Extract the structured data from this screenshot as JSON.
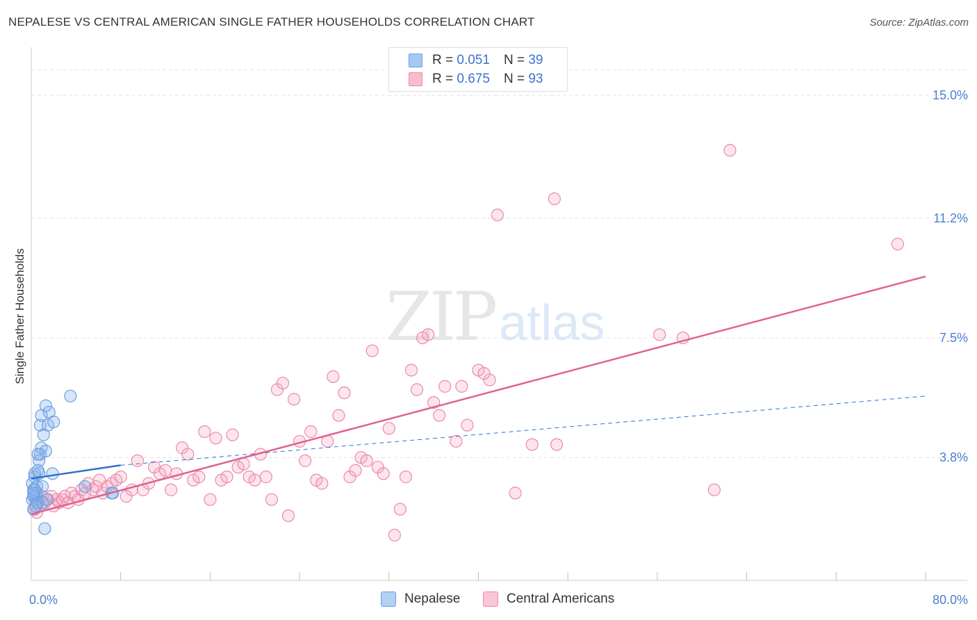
{
  "header": {
    "title": "NEPALESE VS CENTRAL AMERICAN SINGLE FATHER HOUSEHOLDS CORRELATION CHART",
    "source": "Source: ZipAtlas.com"
  },
  "watermark": {
    "zip": "ZIP",
    "atlas": "atlas"
  },
  "legend_top": [
    {
      "r_label": "R =",
      "r_value": "0.051",
      "n_label": "N =",
      "n_value": "39",
      "color": "#a7c8f2",
      "border": "#6a9fe0"
    },
    {
      "r_label": "R =",
      "r_value": "0.675",
      "n_label": "N =",
      "n_value": "93",
      "color": "#f7bcd0",
      "border": "#ec88aa"
    }
  ],
  "legend_bottom": [
    {
      "label": "Nepalese",
      "color": "#b3d0f5",
      "border": "#6a9fe0"
    },
    {
      "label": "Central Americans",
      "color": "#f9c6d6",
      "border": "#ec88aa"
    }
  ],
  "colors": {
    "nepalese_fill": "rgba(140,180,235,0.35)",
    "nepalese_stroke": "#6a9fe0",
    "central_fill": "rgba(245,170,195,0.3)",
    "central_stroke": "#ec88aa",
    "nepalese_line": "#2f6fcf",
    "central_line": "#e0608e",
    "grid": "#e2e2e2",
    "tick_text": "#4a7fd0"
  },
  "chart_data": {
    "type": "scatter",
    "title": "NEPALESE VS CENTRAL AMERICAN SINGLE FATHER HOUSEHOLDS CORRELATION CHART",
    "xlabel": "",
    "ylabel": "Single Father Households",
    "xlim": [
      0,
      80
    ],
    "ylim": [
      0,
      16.4
    ],
    "x_tick_labels": [
      "0.0%",
      "80.0%"
    ],
    "x_ticks": [
      0,
      80
    ],
    "x_minor_ticks": [
      8,
      16,
      24,
      32,
      40,
      48,
      56,
      64,
      72,
      80
    ],
    "y_ticks": [
      3.8,
      7.5,
      11.2,
      15.0
    ],
    "y_tick_labels": [
      "3.8%",
      "7.5%",
      "11.2%",
      "15.0%"
    ],
    "grid": true,
    "legend_position": "top-center",
    "series": [
      {
        "name": "Nepalese",
        "points": [
          [
            0.1,
            2.5
          ],
          [
            0.2,
            2.8
          ],
          [
            0.3,
            3.2
          ],
          [
            0.1,
            3.0
          ],
          [
            0.4,
            2.6
          ],
          [
            0.5,
            2.9
          ],
          [
            0.6,
            2.4
          ],
          [
            0.2,
            2.2
          ],
          [
            0.7,
            3.3
          ],
          [
            0.8,
            3.9
          ],
          [
            0.9,
            4.1
          ],
          [
            0.7,
            3.7
          ],
          [
            0.8,
            4.8
          ],
          [
            0.9,
            5.1
          ],
          [
            1.1,
            4.5
          ],
          [
            1.3,
            5.4
          ],
          [
            1.5,
            4.8
          ],
          [
            1.6,
            5.2
          ],
          [
            2.0,
            4.9
          ],
          [
            1.3,
            4.0
          ],
          [
            1.0,
            2.9
          ],
          [
            0.5,
            2.7
          ],
          [
            0.4,
            2.5
          ],
          [
            0.3,
            2.8
          ],
          [
            1.9,
            3.3
          ],
          [
            3.5,
            5.7
          ],
          [
            4.8,
            2.9
          ],
          [
            7.2,
            2.7
          ],
          [
            1.2,
            1.6
          ],
          [
            0.6,
            3.9
          ],
          [
            0.3,
            3.3
          ],
          [
            0.2,
            2.6
          ],
          [
            0.5,
            2.4
          ],
          [
            1.4,
            2.5
          ],
          [
            7.3,
            2.7
          ],
          [
            1.0,
            2.4
          ],
          [
            0.4,
            2.3
          ],
          [
            0.2,
            2.7
          ],
          [
            0.6,
            3.4
          ]
        ]
      },
      {
        "name": "Central Americans",
        "points": [
          [
            0.3,
            2.2
          ],
          [
            0.5,
            2.1
          ],
          [
            0.6,
            2.5
          ],
          [
            0.8,
            2.3
          ],
          [
            1.0,
            2.6
          ],
          [
            1.2,
            2.4
          ],
          [
            1.5,
            2.5
          ],
          [
            1.8,
            2.6
          ],
          [
            2.0,
            2.3
          ],
          [
            2.3,
            2.5
          ],
          [
            2.5,
            2.4
          ],
          [
            2.8,
            2.5
          ],
          [
            3.0,
            2.6
          ],
          [
            3.3,
            2.4
          ],
          [
            3.6,
            2.7
          ],
          [
            3.9,
            2.6
          ],
          [
            4.2,
            2.5
          ],
          [
            4.5,
            2.8
          ],
          [
            4.8,
            2.7
          ],
          [
            5.1,
            3.0
          ],
          [
            5.5,
            2.8
          ],
          [
            5.8,
            2.9
          ],
          [
            6.1,
            3.1
          ],
          [
            6.4,
            2.7
          ],
          [
            6.8,
            2.9
          ],
          [
            7.2,
            3.0
          ],
          [
            7.6,
            3.1
          ],
          [
            8.0,
            3.2
          ],
          [
            8.5,
            2.6
          ],
          [
            9.0,
            2.8
          ],
          [
            9.5,
            3.7
          ],
          [
            10.0,
            2.8
          ],
          [
            10.5,
            3.0
          ],
          [
            11.0,
            3.5
          ],
          [
            11.5,
            3.3
          ],
          [
            12.0,
            3.4
          ],
          [
            12.5,
            2.8
          ],
          [
            13.0,
            3.3
          ],
          [
            13.5,
            4.1
          ],
          [
            14.0,
            3.9
          ],
          [
            14.5,
            3.1
          ],
          [
            15.0,
            3.2
          ],
          [
            15.5,
            4.6
          ],
          [
            16.0,
            2.5
          ],
          [
            16.5,
            4.4
          ],
          [
            17.0,
            3.1
          ],
          [
            17.5,
            3.2
          ],
          [
            18.0,
            4.5
          ],
          [
            18.5,
            3.5
          ],
          [
            19.0,
            3.6
          ],
          [
            19.5,
            3.2
          ],
          [
            20.0,
            3.1
          ],
          [
            20.5,
            3.9
          ],
          [
            21.0,
            3.2
          ],
          [
            21.5,
            2.5
          ],
          [
            22.0,
            5.9
          ],
          [
            22.5,
            6.1
          ],
          [
            23.0,
            2.0
          ],
          [
            23.5,
            5.6
          ],
          [
            24.0,
            4.3
          ],
          [
            24.5,
            3.7
          ],
          [
            25.0,
            4.6
          ],
          [
            25.5,
            3.1
          ],
          [
            26.0,
            3.0
          ],
          [
            26.5,
            4.3
          ],
          [
            27.0,
            6.3
          ],
          [
            27.5,
            5.1
          ],
          [
            28.0,
            5.8
          ],
          [
            28.5,
            3.2
          ],
          [
            29.0,
            3.4
          ],
          [
            29.5,
            3.8
          ],
          [
            30.0,
            3.7
          ],
          [
            30.5,
            7.1
          ],
          [
            31.0,
            3.5
          ],
          [
            31.5,
            3.3
          ],
          [
            32.0,
            4.7
          ],
          [
            32.5,
            1.4
          ],
          [
            33.0,
            2.2
          ],
          [
            33.5,
            3.2
          ],
          [
            34.0,
            6.5
          ],
          [
            34.5,
            5.9
          ],
          [
            35.0,
            7.5
          ],
          [
            35.5,
            7.6
          ],
          [
            36.0,
            5.5
          ],
          [
            36.5,
            5.1
          ],
          [
            37.0,
            6.0
          ],
          [
            38.0,
            4.3
          ],
          [
            39.0,
            4.8
          ],
          [
            40.0,
            6.5
          ],
          [
            41.0,
            6.2
          ],
          [
            41.7,
            11.3
          ],
          [
            43.3,
            2.7
          ],
          [
            47.0,
            4.2
          ]
        ]
      },
      {
        "name": "Central Americans (extra)",
        "points": [
          [
            38.5,
            6.0
          ],
          [
            40.5,
            6.4
          ],
          [
            44.8,
            4.2
          ],
          [
            46.8,
            11.8
          ],
          [
            56.2,
            7.6
          ],
          [
            58.3,
            7.5
          ],
          [
            61.1,
            2.8
          ],
          [
            62.5,
            13.3
          ],
          [
            77.5,
            10.4
          ]
        ]
      }
    ],
    "trend_lines": [
      {
        "series": "Nepalese",
        "solid_x": [
          0,
          8
        ],
        "y0": 3.15,
        "y1": 3.56,
        "dashed_x": [
          8,
          80
        ],
        "y_end": 5.7
      },
      {
        "series": "Central Americans",
        "x": [
          0,
          80
        ],
        "y0": 2.05,
        "y1": 9.4
      }
    ]
  }
}
